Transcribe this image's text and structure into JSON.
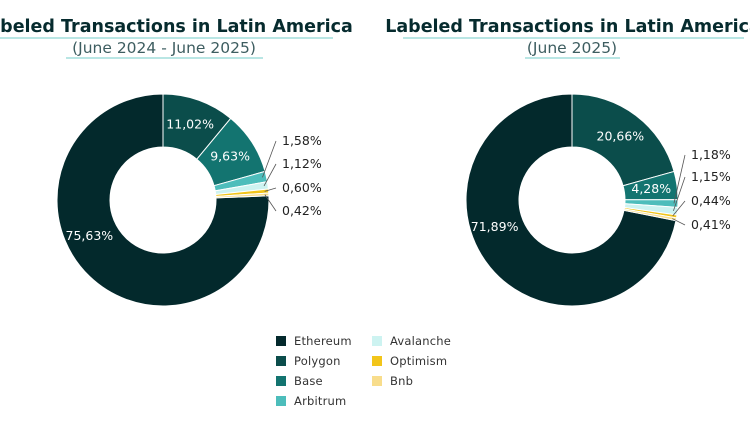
{
  "chart_data": [
    {
      "type": "pie",
      "title": "Labeled Transactions in Latin America",
      "subtitle": "(June 2024 - June 2025)",
      "categories": [
        "Ethereum",
        "Polygon",
        "Base",
        "Arbitrum",
        "Avalanche",
        "Optimism",
        "Bnb"
      ],
      "values": [
        75.63,
        11.02,
        9.63,
        1.58,
        1.12,
        0.6,
        0.42
      ],
      "labels": [
        "75,63%",
        "11,02%",
        "9,63%",
        "1,58%",
        "1,12%",
        "0,60%",
        "0,42%"
      ]
    },
    {
      "type": "pie",
      "title": "Labeled Transactions in Latin America",
      "subtitle": "(June 2025)",
      "categories": [
        "Ethereum",
        "Polygon",
        "Base",
        "Arbitrum",
        "Avalanche",
        "Optimism",
        "Bnb"
      ],
      "values": [
        71.89,
        20.66,
        4.28,
        1.18,
        1.15,
        0.44,
        0.41
      ],
      "labels": [
        "71,89%",
        "20,66%",
        "4,28%",
        "1,18%",
        "1,15%",
        "0,44%",
        "0,41%"
      ]
    }
  ],
  "legend": [
    {
      "name": "Ethereum",
      "color": "#03292c"
    },
    {
      "name": "Polygon",
      "color": "#0b4d4b"
    },
    {
      "name": "Base",
      "color": "#137470"
    },
    {
      "name": "Arbitrum",
      "color": "#4dbdbb"
    },
    {
      "name": "Avalanche",
      "color": "#cdf3f1"
    },
    {
      "name": "Optimism",
      "color": "#f2c51a"
    },
    {
      "name": "Bnb",
      "color": "#f8dd8c"
    }
  ]
}
